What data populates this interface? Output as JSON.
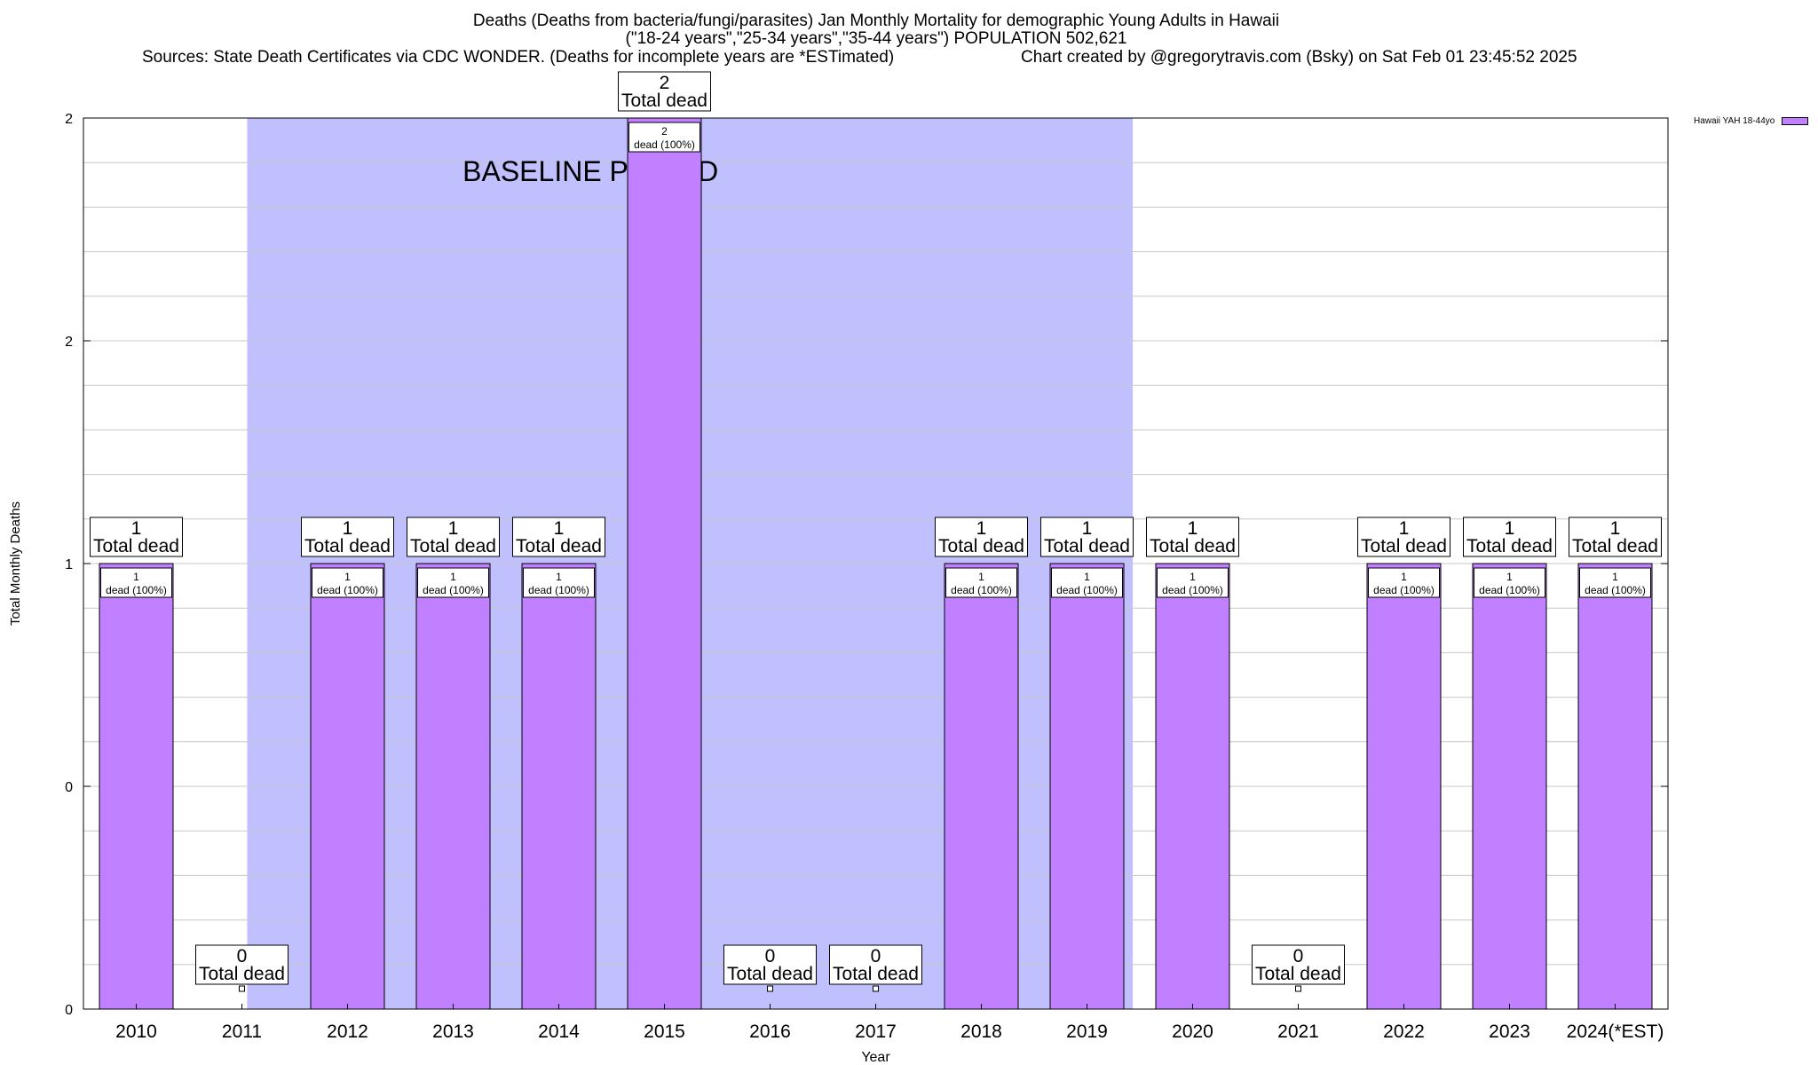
{
  "title": {
    "line1": "Deaths (Deaths from bacteria/fungi/parasites) Jan Monthly Mortality for demographic Young Adults in Hawaii",
    "line2": "(\"18-24 years\",\"25-34 years\",\"35-44 years\") POPULATION 502,621",
    "sources": "Sources: State Death Certificates via CDC WONDER. (Deaths for incomplete years are *ESTimated)",
    "credit": "Chart created by @gregorytravis.com (Bsky) on Sat Feb 01 23:45:52 2025"
  },
  "legend": {
    "label": "Hawaii YAH 18-44yo",
    "color": "#c080ff"
  },
  "colors": {
    "bar": "#c080ff",
    "baseline": "#c0c0ff",
    "grid": "#c8c8c8"
  },
  "chart_data": {
    "type": "bar",
    "categories": [
      "2010",
      "2011",
      "2012",
      "2013",
      "2014",
      "2015",
      "2016",
      "2017",
      "2018",
      "2019",
      "2020",
      "2021",
      "2022",
      "2023",
      "2024(*EST)"
    ],
    "series": [
      {
        "name": "Hawaii YAH 18-44yo",
        "values": [
          1,
          0,
          1,
          1,
          1,
          2,
          0,
          0,
          1,
          1,
          1,
          0,
          1,
          1,
          1
        ]
      }
    ],
    "ylim": [
      0,
      2
    ],
    "yticks": [
      "0",
      "0",
      "1",
      "2",
      "2"
    ],
    "xlabel": "Year",
    "ylabel": "Total Monthly Deaths",
    "grid": true,
    "legend_position": "top-right",
    "baseline_period": {
      "label": "BASELINE PERIOD",
      "from": "2012",
      "to": "2019"
    },
    "total_label_suffix": "Total dead",
    "inner_label_suffix": "dead (100%)"
  }
}
